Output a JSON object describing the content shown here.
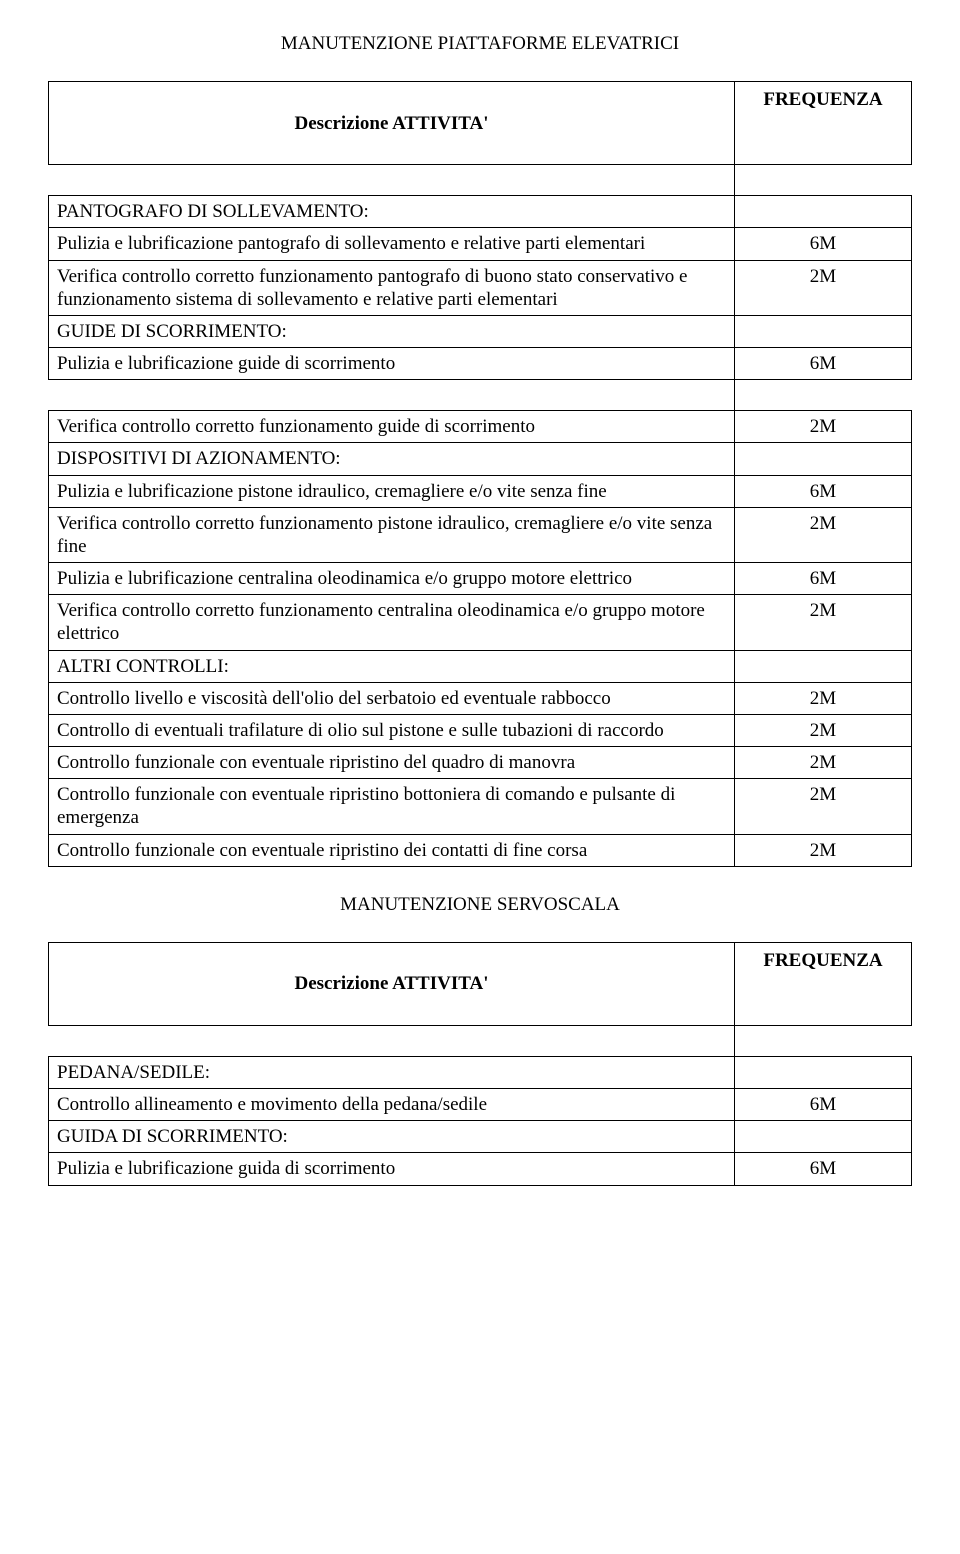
{
  "section1": {
    "title": "MANUTENZIONE PIATTAFORME ELEVATRICI",
    "header_desc": "Descrizione  ATTIVITA'",
    "header_freq": "FREQUENZA",
    "rows": [
      {
        "desc": "PANTOGRAFO DI SOLLEVAMENTO:",
        "freq": ""
      },
      {
        "desc": "Pulizia e lubrificazione pantografo di sollevamento e relative parti elementari",
        "freq": "6M"
      },
      {
        "desc": "Verifica controllo corretto funzionamento pantografo di buono stato conservativo e funzionamento sistema di sollevamento e relative parti elementari",
        "freq": "2M"
      },
      {
        "desc": "GUIDE DI SCORRIMENTO:",
        "freq": ""
      },
      {
        "desc": "Pulizia e lubrificazione guide di scorrimento",
        "freq": "6M"
      }
    ],
    "rows2": [
      {
        "desc": "Verifica controllo corretto funzionamento guide di scorrimento",
        "freq": "2M"
      },
      {
        "desc": "DISPOSITIVI DI AZIONAMENTO:",
        "freq": ""
      },
      {
        "desc": "Pulizia e lubrificazione pistone idraulico, cremagliere e/o vite senza fine",
        "freq": "6M"
      },
      {
        "desc": "Verifica controllo corretto funzionamento pistone idraulico, cremagliere e/o vite senza fine",
        "freq": "2M"
      },
      {
        "desc": "Pulizia e lubrificazione centralina oleodinamica e/o gruppo motore elettrico",
        "freq": "6M"
      },
      {
        "desc": "Verifica controllo corretto funzionamento centralina oleodinamica e/o gruppo motore elettrico",
        "freq": "2M"
      },
      {
        "desc": "ALTRI CONTROLLI:",
        "freq": ""
      },
      {
        "desc": "Controllo livello e viscosità dell'olio del serbatoio ed eventuale rabbocco",
        "freq": "2M"
      },
      {
        "desc": "Controllo di eventuali trafilature di olio sul pistone e sulle tubazioni di raccordo",
        "freq": "2M"
      },
      {
        "desc": "Controllo funzionale con eventuale ripristino del quadro di manovra",
        "freq": "2M"
      },
      {
        "desc": "Controllo funzionale con eventuale ripristino bottoniera di comando e pulsante di emergenza",
        "freq": "2M"
      },
      {
        "desc": "Controllo funzionale con eventuale ripristino dei contatti di fine corsa",
        "freq": "2M"
      }
    ]
  },
  "section2": {
    "title": "MANUTENZIONE SERVOSCALA",
    "header_desc": "Descrizione  ATTIVITA'",
    "header_freq": "FREQUENZA",
    "rows": [
      {
        "desc": "PEDANA/SEDILE:",
        "freq": ""
      },
      {
        "desc": "Controllo allineamento e movimento della pedana/sedile",
        "freq": "6M"
      },
      {
        "desc": "GUIDA DI SCORRIMENTO:",
        "freq": ""
      },
      {
        "desc": "Pulizia e lubrificazione guida di scorrimento",
        "freq": "6M"
      }
    ]
  }
}
